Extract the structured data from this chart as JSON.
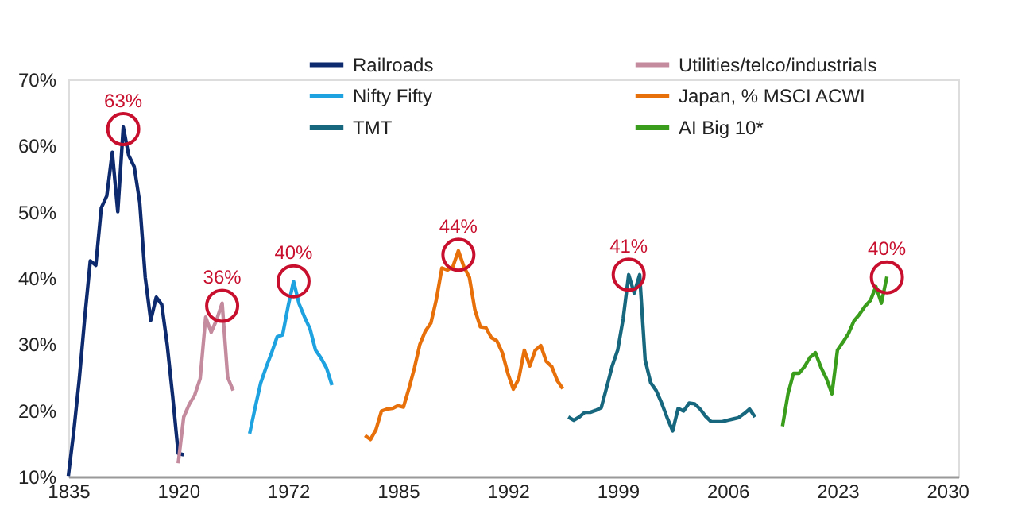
{
  "chart_data": {
    "type": "line",
    "categories": [
      "1835",
      null,
      null,
      null,
      null,
      null,
      null,
      null,
      null,
      null,
      null,
      null,
      null,
      null,
      null,
      null,
      null,
      null,
      null,
      null,
      "1920",
      null,
      null,
      null,
      null,
      null,
      null,
      null,
      null,
      null,
      null,
      null,
      null,
      null,
      null,
      null,
      null,
      null,
      null,
      null,
      "1972",
      null,
      null,
      null,
      null,
      null,
      null,
      null,
      null,
      null,
      null,
      null,
      null,
      null,
      null,
      null,
      null,
      null,
      null,
      null,
      "1985",
      null,
      null,
      null,
      null,
      null,
      null,
      null,
      null,
      null,
      null,
      null,
      null,
      null,
      null,
      null,
      null,
      null,
      null,
      null,
      "1992",
      null,
      null,
      null,
      null,
      null,
      null,
      null,
      null,
      null,
      null,
      null,
      null,
      null,
      null,
      null,
      null,
      null,
      null,
      null,
      "1999",
      null,
      null,
      null,
      null,
      null,
      null,
      null,
      null,
      null,
      null,
      null,
      null,
      null,
      null,
      null,
      null,
      null,
      null,
      null,
      "2006",
      null,
      null,
      null,
      null,
      null,
      null,
      null,
      null,
      null,
      null,
      null,
      null,
      null,
      null,
      null,
      null,
      null,
      null,
      null,
      "2023",
      null,
      null,
      null,
      null,
      null,
      null,
      null,
      null,
      null,
      null,
      null,
      null,
      null,
      null,
      null,
      null,
      null,
      null,
      null,
      "2030",
      null,
      null
    ],
    "ylim": [
      10,
      70
    ],
    "yticks": [
      {
        "value": 10,
        "label": "10%"
      },
      {
        "value": 20,
        "label": "20%"
      },
      {
        "value": 30,
        "label": "30%"
      },
      {
        "value": 40,
        "label": "40%"
      },
      {
        "value": 50,
        "label": "50%"
      },
      {
        "value": 60,
        "label": "60%"
      },
      {
        "value": 70,
        "label": "70%"
      }
    ],
    "grid": false,
    "legend": "top",
    "marker": "none",
    "line_style": "solid",
    "series": [
      {
        "name": "Railroads",
        "color": "#0d2a6e",
        "values": [
          10.1,
          16.9,
          24.8,
          34.1,
          42.6,
          41.9,
          50.6,
          52.4,
          59.0,
          50.0,
          62.8,
          58.5,
          56.8,
          51.4,
          40.1,
          33.6,
          37.1,
          36.0,
          29.9,
          22.1,
          13.5,
          13.3,
          null,
          null,
          null,
          null,
          null,
          null,
          null,
          null,
          null,
          null,
          null,
          null,
          null,
          null,
          null,
          null,
          null,
          null,
          null,
          null,
          null,
          null,
          null,
          null,
          null,
          null,
          null,
          null,
          null,
          null,
          null,
          null,
          null,
          null,
          null,
          null,
          null,
          null,
          null,
          null,
          null,
          null,
          null,
          null,
          null,
          null,
          null,
          null,
          null,
          null,
          null,
          null,
          null,
          null,
          null,
          null,
          null,
          null,
          null,
          null,
          null,
          null,
          null,
          null,
          null,
          null,
          null,
          null,
          null,
          null,
          null,
          null,
          null,
          null,
          null,
          null,
          null,
          null,
          null,
          null,
          null,
          null,
          null,
          null,
          null,
          null,
          null,
          null,
          null,
          null,
          null,
          null,
          null,
          null,
          null,
          null,
          null,
          null,
          null,
          null,
          null,
          null,
          null,
          null,
          null,
          null,
          null,
          null,
          null,
          null,
          null,
          null,
          null,
          null,
          null,
          null,
          null,
          null,
          null,
          null,
          null,
          null,
          null,
          null,
          null,
          null,
          null,
          null,
          null,
          null,
          null,
          null,
          null,
          null,
          null,
          null,
          null,
          null,
          null,
          null,
          null
        ]
      },
      {
        "name": "Utilities/telco/industrials",
        "color": "#c48a9e",
        "values": [
          null,
          null,
          null,
          null,
          null,
          null,
          null,
          null,
          null,
          null,
          null,
          null,
          null,
          null,
          null,
          null,
          null,
          null,
          null,
          null,
          12.0,
          19.0,
          20.9,
          22.3,
          24.8,
          34.1,
          31.8,
          33.7,
          36.2,
          25.0,
          23.0,
          null,
          null,
          null,
          null,
          null,
          null,
          null,
          null,
          null,
          null,
          null,
          null,
          null,
          null,
          null,
          null,
          null,
          null,
          null,
          null,
          null,
          null,
          null,
          null,
          null,
          null,
          null,
          null,
          null,
          null,
          null,
          null,
          null,
          null,
          null,
          null,
          null,
          null,
          null,
          null,
          null,
          null,
          null,
          null,
          null,
          null,
          null,
          null,
          null,
          null,
          null,
          null,
          null,
          null,
          null,
          null,
          null,
          null,
          null,
          null,
          null,
          null,
          null,
          null,
          null,
          null,
          null,
          null,
          null,
          null,
          null,
          null,
          null,
          null,
          null,
          null,
          null,
          null,
          null,
          null,
          null,
          null,
          null,
          null,
          null,
          null,
          null,
          null,
          null,
          null,
          null,
          null,
          null,
          null,
          null,
          null,
          null,
          null,
          null,
          null,
          null,
          null,
          null,
          null,
          null,
          null,
          null,
          null,
          null,
          null,
          null,
          null,
          null,
          null,
          null,
          null,
          null,
          null,
          null,
          null,
          null,
          null,
          null,
          null,
          null,
          null,
          null,
          null,
          null,
          null,
          null,
          null
        ]
      },
      {
        "name": "Nifty Fifty",
        "color": "#1ea3e0",
        "values": [
          null,
          null,
          null,
          null,
          null,
          null,
          null,
          null,
          null,
          null,
          null,
          null,
          null,
          null,
          null,
          null,
          null,
          null,
          null,
          null,
          null,
          null,
          null,
          null,
          null,
          null,
          null,
          null,
          null,
          null,
          null,
          null,
          null,
          16.5,
          20.4,
          24.1,
          26.5,
          28.7,
          31.1,
          31.4,
          35.7,
          39.5,
          36.1,
          34.1,
          32.3,
          29.1,
          27.9,
          26.4,
          23.8,
          null,
          null,
          null,
          null,
          null,
          null,
          null,
          null,
          null,
          null,
          null,
          null,
          null,
          null,
          null,
          null,
          null,
          null,
          null,
          null,
          null,
          null,
          null,
          null,
          null,
          null,
          null,
          null,
          null,
          null,
          null,
          null,
          null,
          null,
          null,
          null,
          null,
          null,
          null,
          null,
          null,
          null,
          null,
          null,
          null,
          null,
          null,
          null,
          null,
          null,
          null,
          null,
          null,
          null,
          null,
          null,
          null,
          null,
          null,
          null,
          null,
          null,
          null,
          null,
          null,
          null,
          null,
          null,
          null,
          null,
          null,
          null,
          null,
          null,
          null,
          null,
          null,
          null,
          null,
          null,
          null,
          null,
          null,
          null,
          null,
          null,
          null,
          null,
          null,
          null,
          null,
          null,
          null,
          null,
          null,
          null,
          null,
          null,
          null,
          null,
          null,
          null,
          null,
          null,
          null,
          null,
          null,
          null,
          null,
          null,
          null,
          null,
          null,
          null
        ]
      },
      {
        "name": "Japan, % MSCI ACWI",
        "color": "#e8700a",
        "values": [
          null,
          null,
          null,
          null,
          null,
          null,
          null,
          null,
          null,
          null,
          null,
          null,
          null,
          null,
          null,
          null,
          null,
          null,
          null,
          null,
          null,
          null,
          null,
          null,
          null,
          null,
          null,
          null,
          null,
          null,
          null,
          null,
          null,
          null,
          null,
          null,
          null,
          null,
          null,
          null,
          null,
          null,
          null,
          null,
          null,
          null,
          null,
          null,
          null,
          null,
          null,
          null,
          null,
          null,
          16.2,
          15.6,
          17.1,
          19.9,
          20.2,
          20.3,
          20.7,
          20.5,
          23.3,
          26.4,
          30.0,
          32.0,
          33.2,
          36.8,
          41.5,
          41.2,
          41.7,
          44.1,
          41.7,
          40.1,
          35.2,
          32.6,
          32.5,
          31.0,
          30.5,
          28.7,
          25.6,
          23.2,
          24.8,
          29.1,
          26.7,
          29.1,
          29.8,
          27.4,
          26.6,
          24.5,
          23.3,
          null,
          null,
          null,
          null,
          null,
          null,
          null,
          null,
          null,
          null,
          null,
          null,
          null,
          null,
          null,
          null,
          null,
          null,
          null,
          null,
          null,
          null,
          null,
          null,
          null,
          null,
          null,
          null,
          null,
          null,
          null,
          null,
          null,
          null,
          null,
          null,
          null,
          null,
          null,
          null,
          null,
          null,
          null,
          null,
          null,
          null,
          null,
          null,
          null,
          null,
          null,
          null,
          null,
          null,
          null,
          null,
          null,
          null,
          null,
          null,
          null,
          null,
          null,
          null,
          null,
          null,
          null,
          null,
          null,
          null,
          null,
          null
        ]
      },
      {
        "name": "TMT",
        "color": "#17687e",
        "values": [
          null,
          null,
          null,
          null,
          null,
          null,
          null,
          null,
          null,
          null,
          null,
          null,
          null,
          null,
          null,
          null,
          null,
          null,
          null,
          null,
          null,
          null,
          null,
          null,
          null,
          null,
          null,
          null,
          null,
          null,
          null,
          null,
          null,
          null,
          null,
          null,
          null,
          null,
          null,
          null,
          null,
          null,
          null,
          null,
          null,
          null,
          null,
          null,
          null,
          null,
          null,
          null,
          null,
          null,
          null,
          null,
          null,
          null,
          null,
          null,
          null,
          null,
          null,
          null,
          null,
          null,
          null,
          null,
          null,
          null,
          null,
          null,
          null,
          null,
          null,
          null,
          null,
          null,
          null,
          null,
          null,
          null,
          null,
          null,
          null,
          null,
          null,
          null,
          null,
          null,
          null,
          19.0,
          18.5,
          19.0,
          19.7,
          19.7,
          20.0,
          20.4,
          23.5,
          26.7,
          29.1,
          33.9,
          40.5,
          37.7,
          40.5,
          27.6,
          24.2,
          23.0,
          21.1,
          18.9,
          16.9,
          20.3,
          19.9,
          21.1,
          21.0,
          20.2,
          19.1,
          18.3,
          18.3,
          18.3,
          18.5,
          18.7,
          18.9,
          19.5,
          20.2,
          19.0,
          null,
          null,
          null,
          null,
          null,
          null,
          null,
          null,
          null,
          null,
          null,
          null,
          null,
          null,
          null,
          null,
          null,
          null,
          null,
          null,
          null,
          null,
          null,
          null,
          null,
          null,
          null,
          null,
          null,
          null,
          null,
          null,
          null,
          null,
          null,
          null,
          null
        ]
      },
      {
        "name": "AI Big 10*",
        "color": "#3a9e1c",
        "values": [
          null,
          null,
          null,
          null,
          null,
          null,
          null,
          null,
          null,
          null,
          null,
          null,
          null,
          null,
          null,
          null,
          null,
          null,
          null,
          null,
          null,
          null,
          null,
          null,
          null,
          null,
          null,
          null,
          null,
          null,
          null,
          null,
          null,
          null,
          null,
          null,
          null,
          null,
          null,
          null,
          null,
          null,
          null,
          null,
          null,
          null,
          null,
          null,
          null,
          null,
          null,
          null,
          null,
          null,
          null,
          null,
          null,
          null,
          null,
          null,
          null,
          null,
          null,
          null,
          null,
          null,
          null,
          null,
          null,
          null,
          null,
          null,
          null,
          null,
          null,
          null,
          null,
          null,
          null,
          null,
          null,
          null,
          null,
          null,
          null,
          null,
          null,
          null,
          null,
          null,
          null,
          null,
          null,
          null,
          null,
          null,
          null,
          null,
          null,
          null,
          null,
          null,
          null,
          null,
          null,
          null,
          null,
          null,
          null,
          null,
          null,
          null,
          null,
          null,
          null,
          null,
          null,
          null,
          null,
          null,
          null,
          null,
          null,
          null,
          null,
          null,
          null,
          null,
          null,
          null,
          17.6,
          22.5,
          25.6,
          25.6,
          26.6,
          28.0,
          28.7,
          26.5,
          24.8,
          22.5,
          29.1,
          30.3,
          31.6,
          33.5,
          34.5,
          35.7,
          36.6,
          38.7,
          36.2,
          40.2,
          null,
          null,
          null,
          null,
          null,
          null,
          null,
          null,
          null,
          null,
          null,
          null,
          null
        ]
      }
    ],
    "annotations": [
      {
        "text": "63%",
        "y": 62.5
      },
      {
        "text": "36%",
        "y": 35.8
      },
      {
        "text": "40%",
        "y": 39.5
      },
      {
        "text": "44%",
        "y": 43.5
      },
      {
        "text": "41%",
        "y": 40.5
      },
      {
        "text": "40%",
        "y": 40.1
      }
    ]
  }
}
